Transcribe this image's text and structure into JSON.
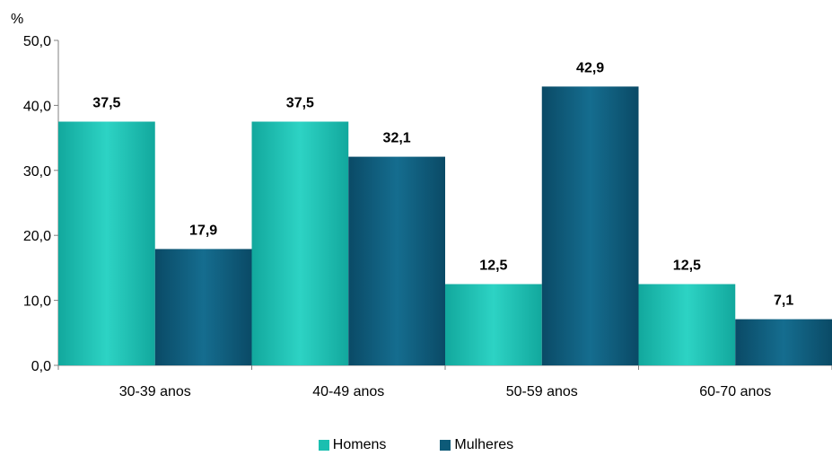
{
  "chart_data": {
    "type": "bar",
    "ylabel": "%",
    "ylim": [
      0,
      50
    ],
    "yticks": [
      "0,0",
      "10,0",
      "20,0",
      "30,0",
      "40,0",
      "50,0"
    ],
    "categories": [
      "30-39 anos",
      "40-49 anos",
      "50-59 anos",
      "60-70 anos"
    ],
    "series": [
      {
        "name": "Homens",
        "values": [
          37.5,
          37.5,
          12.5,
          12.5
        ],
        "labels": [
          "37,5",
          "37,5",
          "12,5",
          "12,5"
        ],
        "color": "#1abfb0"
      },
      {
        "name": "Mulheres",
        "values": [
          17.9,
          32.1,
          42.9,
          7.1
        ],
        "labels": [
          "17,9",
          "32,1",
          "42,9",
          "7,1"
        ],
        "color": "#0d5a78"
      }
    ],
    "grid": false,
    "legend_position": "bottom"
  }
}
